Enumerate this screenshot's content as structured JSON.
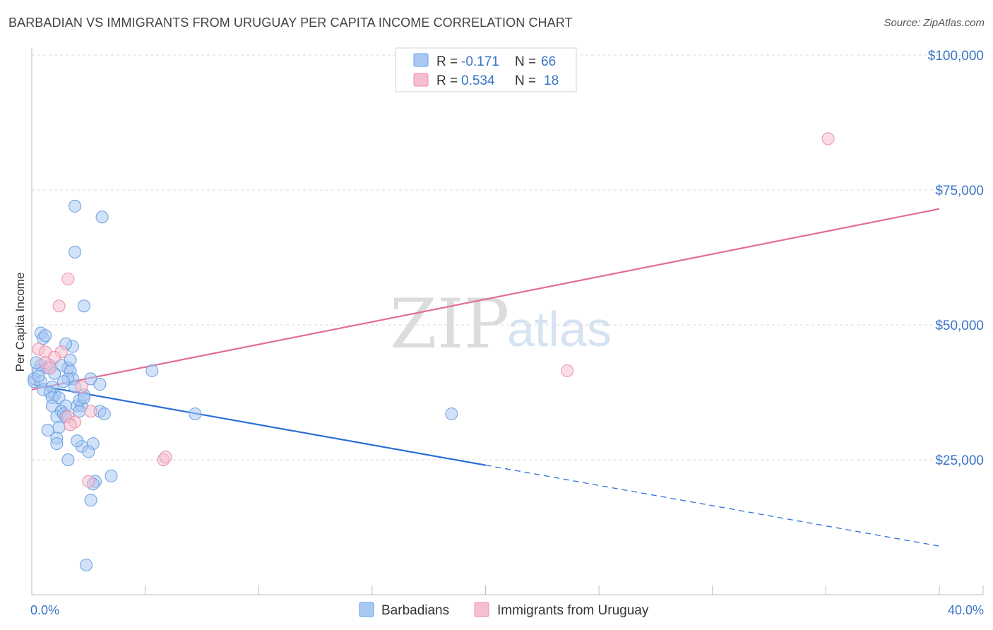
{
  "title": "BARBADIAN VS IMMIGRANTS FROM URUGUAY PER CAPITA INCOME CORRELATION CHART",
  "source": "Source: ZipAtlas.com",
  "watermark": {
    "left": "ZIP",
    "right": "atlas"
  },
  "chart_data": {
    "type": "scatter",
    "title": "BARBADIAN VS IMMIGRANTS FROM URUGUAY PER CAPITA INCOME CORRELATION CHART",
    "xlabel": "",
    "ylabel": "Per Capita Income",
    "xlim": [
      0,
      40
    ],
    "ylim": [
      0,
      100000
    ],
    "x_tick_labels": [
      "0.0%",
      "40.0%"
    ],
    "y_ticks": [
      25000,
      50000,
      75000,
      100000
    ],
    "y_tick_labels": [
      "$25,000",
      "$50,000",
      "$75,000",
      "$100,000"
    ],
    "grid": true,
    "legend_top": [
      {
        "r_label": "R = ",
        "r_value": "-0.171",
        "n_label": "N = ",
        "n_value": "66",
        "color": "#a9c8f3"
      },
      {
        "r_label": "R = ",
        "r_value": "0.534",
        "n_label": "N = ",
        "n_value": "18",
        "color": "#f6bfd0"
      }
    ],
    "series": [
      {
        "name": "Barbadians",
        "color": "#a9c8f3",
        "stroke": "#6a9fe0",
        "trend_color": "#2b6fd6",
        "trend": {
          "x0": 0,
          "y0": 39000,
          "x1": 20,
          "y1": 24000,
          "dashed_to_x": 40,
          "dashed_to_y": 9000
        },
        "points": [
          [
            0.4,
            48.5
          ],
          [
            0.5,
            47.5
          ],
          [
            0.4,
            42.5
          ],
          [
            0.3,
            41.5
          ],
          [
            0.2,
            43
          ],
          [
            0.1,
            40
          ],
          [
            0.1,
            39.5
          ],
          [
            0.4,
            39.5
          ],
          [
            0.5,
            38
          ],
          [
            0.9,
            38.5
          ],
          [
            1.0,
            37
          ],
          [
            0.8,
            37.5
          ],
          [
            0.9,
            36.5
          ],
          [
            1.2,
            36.5
          ],
          [
            0.9,
            35
          ],
          [
            1.5,
            35
          ],
          [
            1.3,
            34
          ],
          [
            1.1,
            33
          ],
          [
            1.4,
            33.5
          ],
          [
            1.2,
            31
          ],
          [
            1.5,
            33
          ],
          [
            0.7,
            30.5
          ],
          [
            1.1,
            29
          ],
          [
            1.1,
            28
          ],
          [
            0.7,
            42
          ],
          [
            1.6,
            42
          ],
          [
            1.7,
            41.5
          ],
          [
            1.8,
            40
          ],
          [
            1.6,
            40
          ],
          [
            1.3,
            42.5
          ],
          [
            1.8,
            46
          ],
          [
            1.5,
            46.5
          ],
          [
            2.0,
            35
          ],
          [
            2.2,
            35
          ],
          [
            2.1,
            36
          ],
          [
            2.3,
            37
          ],
          [
            2.3,
            36.5
          ],
          [
            1.9,
            38.5
          ],
          [
            2.1,
            34
          ],
          [
            2.2,
            27.5
          ],
          [
            2.7,
            28
          ],
          [
            2.0,
            28.5
          ],
          [
            2.5,
            26.5
          ],
          [
            1.6,
            25
          ],
          [
            2.8,
            21
          ],
          [
            2.7,
            20.5
          ],
          [
            3.5,
            22
          ],
          [
            2.6,
            17.5
          ],
          [
            2.4,
            5.5
          ],
          [
            1.9,
            72
          ],
          [
            3.1,
            70
          ],
          [
            1.9,
            63.5
          ],
          [
            2.3,
            53.5
          ],
          [
            3.0,
            34
          ],
          [
            3.2,
            33.5
          ],
          [
            5.3,
            41.5
          ],
          [
            7.2,
            33.5
          ],
          [
            18.5,
            33.5
          ],
          [
            0.6,
            48
          ],
          [
            0.8,
            42.5
          ],
          [
            1.0,
            41
          ],
          [
            1.4,
            39.5
          ],
          [
            1.7,
            43.5
          ],
          [
            0.3,
            40.5
          ],
          [
            2.6,
            40
          ],
          [
            3.0,
            39
          ]
        ]
      },
      {
        "name": "Immigrants from Uruguay",
        "color": "#f6bfd0",
        "stroke": "#ea8fab",
        "trend_color": "#e36d95",
        "trend": {
          "x0": 0,
          "y0": 38000,
          "x1": 40,
          "y1": 71500
        },
        "points": [
          [
            0.3,
            45.5
          ],
          [
            0.6,
            45
          ],
          [
            1.3,
            45
          ],
          [
            1.0,
            44
          ],
          [
            0.6,
            43
          ],
          [
            0.8,
            42
          ],
          [
            1.6,
            58.5
          ],
          [
            1.2,
            53.5
          ],
          [
            2.2,
            38.5
          ],
          [
            2.6,
            34
          ],
          [
            1.6,
            33
          ],
          [
            1.9,
            32
          ],
          [
            1.7,
            31.5
          ],
          [
            2.5,
            21
          ],
          [
            5.8,
            25
          ],
          [
            5.9,
            25.5
          ],
          [
            23.6,
            41.5
          ],
          [
            35.1,
            84.5
          ]
        ]
      }
    ]
  }
}
